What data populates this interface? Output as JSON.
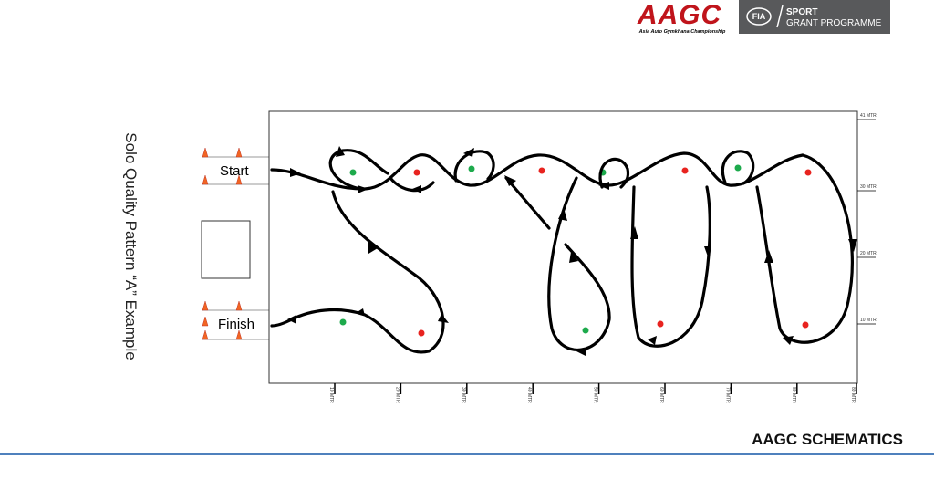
{
  "header": {
    "logo": "AAGC",
    "logo_tagline": "Asia Auto Gymkhana Championship",
    "fia": "FIA",
    "sport": "SPORT",
    "programme": "GRANT PROGRAMME"
  },
  "title": "Solo Quality Pattern “A” Example",
  "labels": {
    "start": "Start",
    "finish": "Finish"
  },
  "x_scale": [
    "10 MTR",
    "20 MTR",
    "30 MTR",
    "40 MTR",
    "50 MTR",
    "60 MTR",
    "70 MTR",
    "80 MTR",
    "89 MTR"
  ],
  "y_scale": [
    "41 MTR",
    "30 MTR",
    "20 MTR",
    "10 MTR"
  ],
  "footer": "AAGC SCHEMATICS"
}
